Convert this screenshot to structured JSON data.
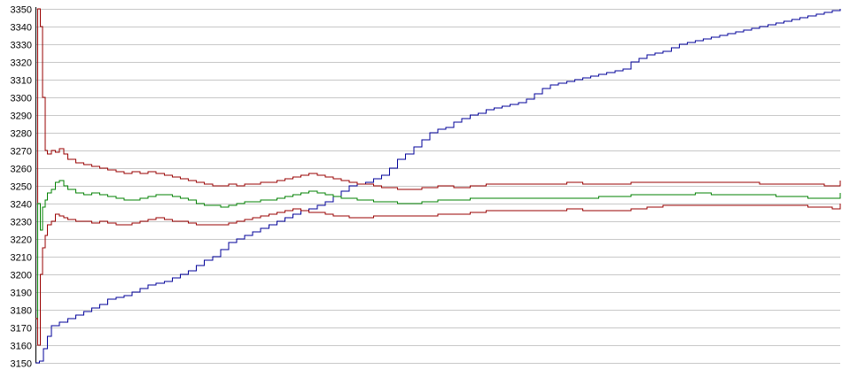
{
  "chart_data": {
    "type": "line",
    "title": "",
    "xlabel": "",
    "ylabel": "",
    "ylim": [
      3150,
      3350
    ],
    "xlim": [
      0,
      100
    ],
    "grid": true,
    "y_ticks": [
      3150,
      3160,
      3170,
      3180,
      3190,
      3200,
      3210,
      3220,
      3230,
      3240,
      3250,
      3260,
      3270,
      3280,
      3290,
      3300,
      3310,
      3320,
      3330,
      3340,
      3350
    ],
    "colors": {
      "upper": "#990000",
      "middle": "#008000",
      "lower": "#990000",
      "trend": "#000099",
      "grid": "#c8c8c8",
      "axis": "#000000"
    },
    "series": [
      {
        "color_key": "trend",
        "x": [
          0,
          0.5,
          1,
          1.5,
          2,
          3,
          4,
          5,
          6,
          7,
          8,
          9,
          10,
          11,
          12,
          13,
          14,
          15,
          16,
          17,
          18,
          19,
          20,
          21,
          22,
          23,
          24,
          25,
          26,
          27,
          28,
          29,
          30,
          31,
          32,
          33,
          34,
          35,
          36,
          37,
          38,
          39,
          40,
          41,
          42,
          43,
          44,
          45,
          46,
          47,
          48,
          49,
          50,
          51,
          52,
          53,
          54,
          55,
          56,
          57,
          58,
          59,
          60,
          61,
          62,
          63,
          64,
          65,
          66,
          67,
          68,
          69,
          70,
          71,
          72,
          73,
          74,
          75,
          76,
          77,
          78,
          79,
          80,
          81,
          82,
          83,
          84,
          85,
          86,
          87,
          88,
          89,
          90,
          91,
          92,
          93,
          94,
          95,
          96,
          97,
          98,
          99,
          100
        ],
        "values": [
          3150,
          3151,
          3158,
          3165,
          3171,
          3173,
          3175,
          3177,
          3179,
          3181,
          3183,
          3186,
          3187,
          3188,
          3190,
          3192,
          3194,
          3195,
          3196,
          3198,
          3200,
          3202,
          3205,
          3208,
          3210,
          3214,
          3218,
          3220,
          3222,
          3224,
          3226,
          3228,
          3230,
          3232,
          3234,
          3236,
          3237,
          3239,
          3241,
          3244,
          3247,
          3250,
          3251,
          3252,
          3254,
          3256,
          3260,
          3265,
          3268,
          3272,
          3276,
          3280,
          3282,
          3283,
          3286,
          3288,
          3290,
          3291,
          3293,
          3294,
          3295,
          3296,
          3297,
          3299,
          3302,
          3305,
          3307,
          3308,
          3309,
          3310,
          3311,
          3312,
          3313,
          3314,
          3315,
          3316,
          3320,
          3322,
          3324,
          3325,
          3326,
          3328,
          3330,
          3331,
          3332,
          3333,
          3334,
          3335,
          3336,
          3337,
          3338,
          3339,
          3340,
          3341,
          3342,
          3343,
          3344,
          3345,
          3346,
          3347,
          3348,
          3349,
          3350
        ]
      },
      {
        "color_key": "upper",
        "x": [
          0,
          0.3,
          0.6,
          0.9,
          1.2,
          1.5,
          2,
          2.5,
          3,
          3.5,
          4,
          5,
          6,
          7,
          8,
          9,
          10,
          11,
          12,
          13,
          14,
          15,
          16,
          17,
          18,
          19,
          20,
          21,
          22,
          23,
          24,
          25,
          26,
          27,
          28,
          29,
          30,
          31,
          32,
          33,
          34,
          35,
          36,
          37,
          38,
          39,
          40,
          41,
          42,
          43,
          44,
          45,
          46,
          47,
          48,
          49,
          50,
          52,
          54,
          56,
          58,
          60,
          62,
          64,
          66,
          68,
          70,
          72,
          74,
          76,
          78,
          80,
          82,
          84,
          86,
          88,
          90,
          92,
          94,
          96,
          98,
          99,
          100
        ],
        "values": [
          3175,
          3350,
          3340,
          3300,
          3270,
          3268,
          3270,
          3269,
          3271,
          3268,
          3265,
          3263,
          3262,
          3261,
          3260,
          3259,
          3258,
          3257,
          3258,
          3257,
          3258,
          3257,
          3256,
          3255,
          3254,
          3253,
          3252,
          3251,
          3250,
          3250,
          3251,
          3250,
          3251,
          3251,
          3252,
          3252,
          3253,
          3254,
          3255,
          3256,
          3257,
          3256,
          3255,
          3254,
          3253,
          3252,
          3251,
          3251,
          3250,
          3249,
          3249,
          3248,
          3248,
          3248,
          3249,
          3249,
          3250,
          3249,
          3250,
          3251,
          3251,
          3251,
          3251,
          3251,
          3252,
          3251,
          3251,
          3251,
          3252,
          3252,
          3252,
          3252,
          3252,
          3252,
          3252,
          3252,
          3251,
          3251,
          3251,
          3251,
          3250,
          3250,
          3253
        ]
      },
      {
        "color_key": "middle",
        "x": [
          0,
          0.3,
          0.6,
          0.9,
          1.2,
          1.5,
          2,
          2.5,
          3,
          3.5,
          4,
          5,
          6,
          7,
          8,
          9,
          10,
          11,
          12,
          13,
          14,
          15,
          16,
          17,
          18,
          19,
          20,
          21,
          22,
          23,
          24,
          25,
          26,
          27,
          28,
          29,
          30,
          31,
          32,
          33,
          34,
          35,
          36,
          37,
          38,
          39,
          40,
          41,
          42,
          43,
          44,
          45,
          46,
          47,
          48,
          49,
          50,
          52,
          54,
          56,
          58,
          60,
          62,
          64,
          66,
          68,
          70,
          72,
          74,
          76,
          78,
          80,
          82,
          84,
          86,
          88,
          90,
          92,
          94,
          96,
          98,
          99,
          100
        ],
        "values": [
          3175,
          3240,
          3225,
          3238,
          3242,
          3246,
          3248,
          3252,
          3253,
          3250,
          3248,
          3246,
          3245,
          3246,
          3245,
          3244,
          3243,
          3242,
          3242,
          3243,
          3244,
          3245,
          3245,
          3244,
          3243,
          3242,
          3240,
          3239,
          3239,
          3238,
          3239,
          3240,
          3241,
          3241,
          3242,
          3242,
          3243,
          3244,
          3245,
          3246,
          3247,
          3246,
          3245,
          3244,
          3243,
          3243,
          3242,
          3242,
          3241,
          3241,
          3241,
          3240,
          3240,
          3240,
          3241,
          3241,
          3242,
          3242,
          3243,
          3243,
          3243,
          3243,
          3243,
          3243,
          3243,
          3243,
          3244,
          3244,
          3245,
          3245,
          3245,
          3245,
          3246,
          3245,
          3245,
          3245,
          3245,
          3244,
          3244,
          3243,
          3243,
          3243,
          3246
        ]
      },
      {
        "color_key": "lower",
        "x": [
          0,
          0.3,
          0.6,
          0.9,
          1.2,
          1.5,
          2,
          2.5,
          3,
          3.5,
          4,
          5,
          6,
          7,
          8,
          9,
          10,
          11,
          12,
          13,
          14,
          15,
          16,
          17,
          18,
          19,
          20,
          21,
          22,
          23,
          24,
          25,
          26,
          27,
          28,
          29,
          30,
          31,
          32,
          33,
          34,
          35,
          36,
          37,
          38,
          39,
          40,
          41,
          42,
          43,
          44,
          45,
          46,
          47,
          48,
          49,
          50,
          52,
          54,
          56,
          58,
          60,
          62,
          64,
          66,
          68,
          70,
          72,
          74,
          76,
          78,
          80,
          82,
          84,
          86,
          88,
          90,
          92,
          94,
          96,
          98,
          99,
          100
        ],
        "values": [
          3175,
          3160,
          3200,
          3215,
          3222,
          3228,
          3230,
          3234,
          3233,
          3232,
          3231,
          3230,
          3230,
          3229,
          3230,
          3229,
          3228,
          3228,
          3229,
          3230,
          3231,
          3232,
          3231,
          3230,
          3230,
          3229,
          3228,
          3228,
          3228,
          3228,
          3229,
          3230,
          3231,
          3232,
          3233,
          3234,
          3235,
          3236,
          3237,
          3236,
          3235,
          3235,
          3234,
          3233,
          3233,
          3232,
          3232,
          3232,
          3233,
          3233,
          3233,
          3233,
          3233,
          3233,
          3233,
          3233,
          3234,
          3234,
          3235,
          3236,
          3236,
          3236,
          3236,
          3236,
          3237,
          3236,
          3236,
          3236,
          3237,
          3238,
          3239,
          3239,
          3239,
          3239,
          3239,
          3239,
          3239,
          3239,
          3239,
          3238,
          3238,
          3237,
          3240
        ]
      }
    ]
  }
}
